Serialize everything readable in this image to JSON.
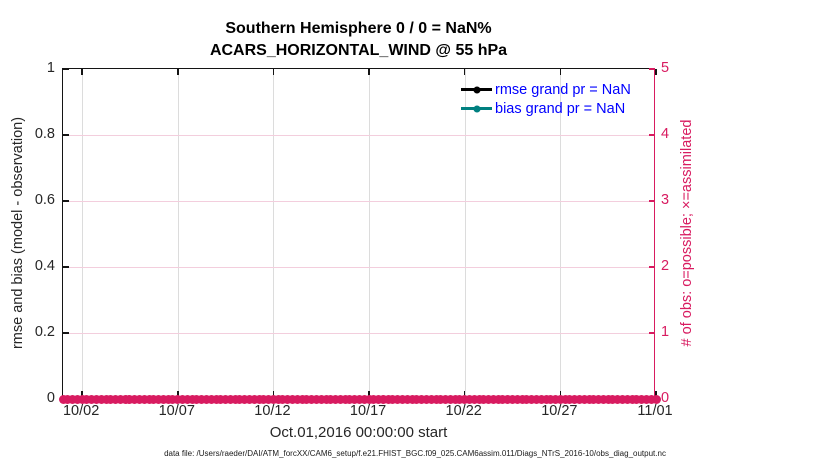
{
  "title": {
    "line1": "Southern Hemisphere 0 / 0 = NaN%",
    "line2": "ACARS_HORIZONTAL_WIND @ 55 hPa"
  },
  "colors": {
    "accent_pink": "#D81B60",
    "grid_pink": "#f3cedd",
    "grid_gray": "#dcdcdc",
    "teal": "#008080",
    "legend_blue": "#0000FF",
    "axis_black": "#141414",
    "text_dark": "#262626"
  },
  "legend": [
    {
      "label": "rmse grand pr = NaN",
      "line_color": "#000000"
    },
    {
      "label": "bias grand pr = NaN",
      "line_color": "#008080"
    }
  ],
  "left_axis": {
    "label": "rmse and bias (model - observation)",
    "min": 0,
    "max": 1,
    "ticks": [
      {
        "label": "0",
        "value": 0
      },
      {
        "label": "0.2",
        "value": 0.2
      },
      {
        "label": "0.4",
        "value": 0.4
      },
      {
        "label": "0.6",
        "value": 0.6
      },
      {
        "label": "0.8",
        "value": 0.8
      },
      {
        "label": "1",
        "value": 1
      }
    ]
  },
  "right_axis": {
    "label": "# of obs: o=possible; ×=assimilated",
    "min": 0,
    "max": 5,
    "color": "#D81B60",
    "ticks": [
      {
        "label": "0",
        "value": 0
      },
      {
        "label": "1",
        "value": 1
      },
      {
        "label": "2",
        "value": 2
      },
      {
        "label": "3",
        "value": 3
      },
      {
        "label": "4",
        "value": 4
      },
      {
        "label": "5",
        "value": 5
      }
    ]
  },
  "x_axis": {
    "label": "Oct.01,2016 00:00:00 start",
    "total_days": 31,
    "ticks": [
      {
        "label": "10/02",
        "day": 1
      },
      {
        "label": "10/07",
        "day": 6
      },
      {
        "label": "10/12",
        "day": 11
      },
      {
        "label": "10/17",
        "day": 16
      },
      {
        "label": "10/22",
        "day": 21
      },
      {
        "label": "10/27",
        "day": 26
      },
      {
        "label": "11/01",
        "day": 31
      }
    ]
  },
  "footnote": "data file: /Users/raeder/DAI/ATM_forcXX/CAM6_setup/f.e21.FHIST_BGC.f09_025.CAM6assim.011/Diags_NTrS_2016-10/obs_diag_output.nc",
  "chart_data": {
    "type": "line",
    "title": "Southern Hemisphere 0 / 0 = NaN%",
    "subtitle": "ACARS_HORIZONTAL_WIND @ 55 hPa",
    "xlabel": "Oct.01,2016 00:00:00 start",
    "x_tick_labels": [
      "10/02",
      "10/07",
      "10/12",
      "10/17",
      "10/22",
      "10/27",
      "11/01"
    ],
    "x_range": "Oct 01 2016 00:00 to Nov 01 2016, 31 days",
    "left_ylabel": "rmse and bias (model - observation)",
    "left_ylim": [
      0,
      1
    ],
    "right_ylabel": "# of obs: o=possible; ×=assimilated",
    "right_ylim": [
      0,
      5
    ],
    "grid": true,
    "legend_position": "upper-right-inside, no box",
    "series": [
      {
        "name": "rmse grand pr",
        "axis": "left",
        "values_all": "NaN (nothing plotted)",
        "color": "#000000",
        "marker": "filled circle"
      },
      {
        "name": "bias grand pr",
        "axis": "left",
        "values_all": "NaN (nothing plotted)",
        "color": "#008080",
        "marker": "filled circle"
      },
      {
        "name": "# of obs possible (o)",
        "axis": "right",
        "constant_value": 0,
        "n_points": 125,
        "color": "#D81B60",
        "marker": "circle at y=0 overlapping into a band"
      },
      {
        "name": "# of obs assimilated (×)",
        "axis": "right",
        "constant_value": 0,
        "n_points": 125,
        "color": "#D81B60"
      }
    ],
    "summary": "0 possible / 0 assimilated observations, so rmse and bias are NaN; only the zero-count observation markers are drawn along y=0."
  }
}
